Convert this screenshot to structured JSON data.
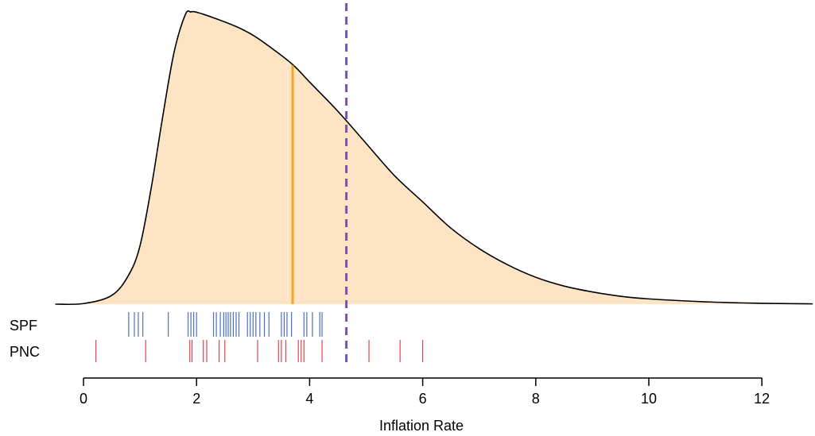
{
  "chart_data": {
    "type": "area",
    "xlabel": "Inflation Rate",
    "ylabel": "",
    "title": "",
    "xlim": [
      -0.5,
      12.9
    ],
    "xticks": [
      0,
      2,
      4,
      6,
      8,
      10,
      12
    ],
    "xtick_labels": [
      "0",
      "2",
      "4",
      "6",
      "8",
      "10",
      "12"
    ],
    "density": {
      "fill_color": "#fce4c4",
      "line_color": "#000000",
      "x": [
        -0.5,
        0.0,
        0.5,
        0.8,
        1.0,
        1.2,
        1.4,
        1.6,
        1.8,
        1.9,
        2.0,
        2.3,
        2.7,
        3.0,
        3.3,
        3.7,
        4.0,
        4.5,
        5.0,
        5.5,
        6.0,
        6.5,
        7.0,
        7.5,
        8.0,
        8.5,
        9.0,
        9.5,
        10.0,
        11.0,
        12.0,
        12.9
      ],
      "y": [
        0.0,
        0.002,
        0.03,
        0.1,
        0.2,
        0.4,
        0.64,
        0.86,
        0.99,
        1.0,
        0.999,
        0.98,
        0.95,
        0.92,
        0.88,
        0.82,
        0.76,
        0.66,
        0.55,
        0.44,
        0.35,
        0.26,
        0.19,
        0.135,
        0.092,
        0.062,
        0.042,
        0.027,
        0.018,
        0.008,
        0.003,
        0.001
      ]
    },
    "median": {
      "x": 3.7,
      "color": "#f5a623"
    },
    "reference_line": {
      "x": 4.65,
      "color": "#7b52ab",
      "style": "dashed"
    },
    "rugs": [
      {
        "name": "SPF",
        "color": "#4a6fc9",
        "values": [
          0.8,
          0.9,
          0.97,
          1.05,
          1.5,
          1.85,
          1.9,
          1.95,
          2.0,
          2.3,
          2.35,
          2.42,
          2.48,
          2.52,
          2.56,
          2.6,
          2.65,
          2.7,
          2.75,
          2.9,
          2.95,
          3.0,
          3.05,
          3.12,
          3.2,
          3.28,
          3.5,
          3.55,
          3.6,
          3.68,
          3.9,
          3.95,
          4.05,
          4.18,
          4.22
        ]
      },
      {
        "name": "PNC",
        "color": "#e0434b",
        "values": [
          0.22,
          1.1,
          1.88,
          1.92,
          2.12,
          2.18,
          2.4,
          2.5,
          3.08,
          3.45,
          3.5,
          3.58,
          3.8,
          3.85,
          3.9,
          4.22,
          5.05,
          5.6,
          6.0
        ]
      }
    ]
  }
}
